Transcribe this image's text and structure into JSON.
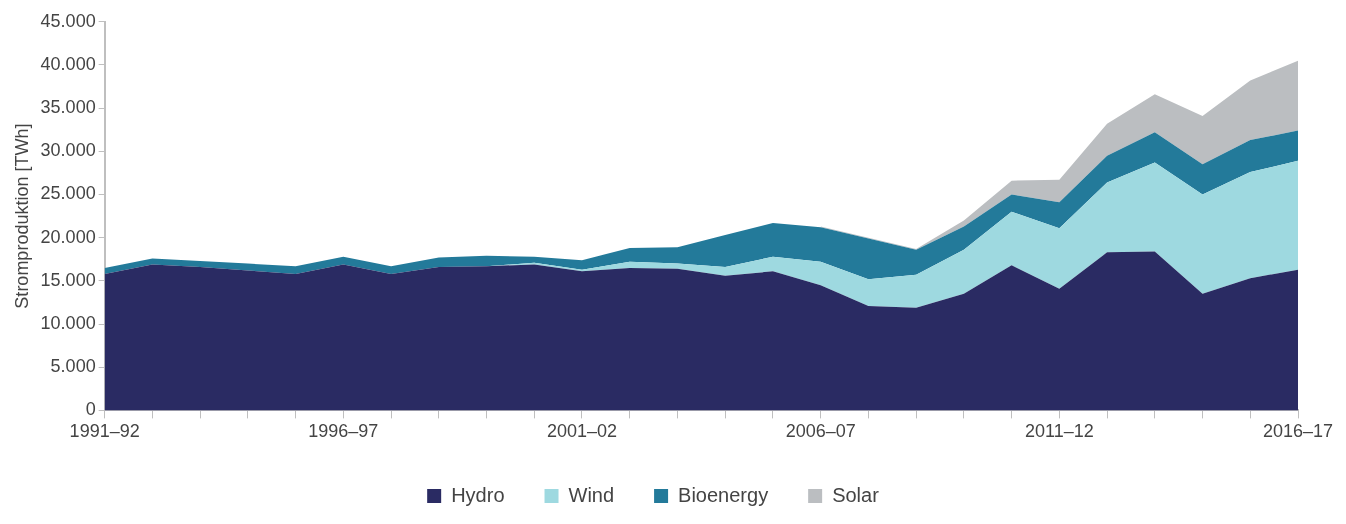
{
  "chart_data": {
    "type": "area",
    "stacked": true,
    "ylabel": "Stromproduktion [TWh]",
    "legend": "bottom",
    "categories": [
      "1991–92",
      null,
      null,
      null,
      null,
      "1996–97",
      null,
      null,
      null,
      null,
      "2001–02",
      null,
      null,
      null,
      null,
      "2006–07",
      null,
      null,
      null,
      null,
      "2011–12",
      null,
      null,
      null,
      null,
      "2016–17"
    ],
    "ylim": [
      0,
      45000
    ],
    "yticks": [
      0,
      {
        "value": 5000,
        "label": "5.000"
      },
      {
        "value": 10000,
        "label": "10.000"
      },
      {
        "value": 15000,
        "label": "15.000"
      },
      {
        "value": 20000,
        "label": "20.000"
      },
      {
        "value": 25000,
        "label": "25.000"
      },
      {
        "value": 30000,
        "label": "30.000"
      },
      {
        "value": 35000,
        "label": "35.000"
      },
      {
        "value": 40000,
        "label": "40.000"
      },
      {
        "value": 45000,
        "label": "45.000"
      }
    ],
    "series": [
      {
        "name": "Hydro",
        "color": "#2a2b63",
        "values": [
          15800,
          16900,
          16600,
          16200,
          15800,
          16900,
          15800,
          16600,
          16700,
          16900,
          16100,
          16500,
          16400,
          15600,
          16100,
          14500,
          12100,
          11900,
          13500,
          16800,
          14100,
          18300,
          18400,
          13500,
          15300,
          16300
        ]
      },
      {
        "name": "Wind",
        "color": "#9ed9e0",
        "values": [
          0,
          0,
          0,
          0,
          0,
          0,
          0,
          0,
          0,
          200,
          200,
          700,
          600,
          1000,
          1700,
          2700,
          3100,
          3800,
          5100,
          6200,
          7000,
          8100,
          10300,
          11500,
          12300,
          12600
        ]
      },
      {
        "name": "Bioenergy",
        "color": "#237a9a",
        "values": [
          700,
          700,
          700,
          800,
          900,
          900,
          900,
          1100,
          1200,
          700,
          1100,
          1600,
          1900,
          3700,
          3900,
          4000,
          4700,
          2900,
          2700,
          2000,
          3000,
          3100,
          3500,
          3500,
          3700,
          3500
        ]
      },
      {
        "name": "Solar",
        "color": "#bbbec1",
        "values": [
          null,
          null,
          null,
          null,
          null,
          null,
          null,
          null,
          null,
          null,
          null,
          null,
          null,
          null,
          null,
          100,
          100,
          100,
          700,
          1600,
          2600,
          3700,
          4400,
          5600,
          6900,
          8100
        ]
      }
    ]
  }
}
